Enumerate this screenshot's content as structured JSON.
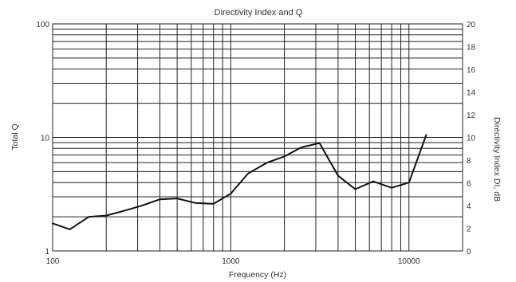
{
  "chart_data": {
    "type": "line",
    "title": "Directivity Index and Q",
    "xlabel": "Frequency (Hz)",
    "ylabel_left": "Total Q",
    "ylabel_right": "Directivity Index DI, dB",
    "x_scale": "log",
    "y_scale_left": "log",
    "xlim": [
      100,
      20000
    ],
    "ylim_left": [
      1,
      100
    ],
    "ylim_right": [
      0,
      20
    ],
    "grid": true,
    "x_tick_labels": [
      "100",
      "1000",
      "10000"
    ],
    "y_left_tick_labels": [
      "1",
      "10",
      "100"
    ],
    "y_right_tick_labels": [
      "0",
      "2",
      "4",
      "6",
      "8",
      "10",
      "12",
      "14",
      "16",
      "18",
      "20"
    ],
    "series": [
      {
        "x": [
          100,
          125,
          160,
          200,
          250,
          315,
          400,
          500,
          630,
          800,
          1000,
          1250,
          1600,
          2000,
          2500,
          3150,
          4000,
          5000,
          6300,
          8000,
          10000,
          12500
        ],
        "y": [
          1.75,
          1.55,
          2.0,
          2.05,
          2.25,
          2.5,
          2.85,
          2.9,
          2.65,
          2.6,
          3.2,
          4.8,
          6.0,
          6.8,
          8.2,
          8.9,
          4.6,
          3.5,
          4.1,
          3.6,
          4.0,
          10.5
        ]
      }
    ]
  }
}
